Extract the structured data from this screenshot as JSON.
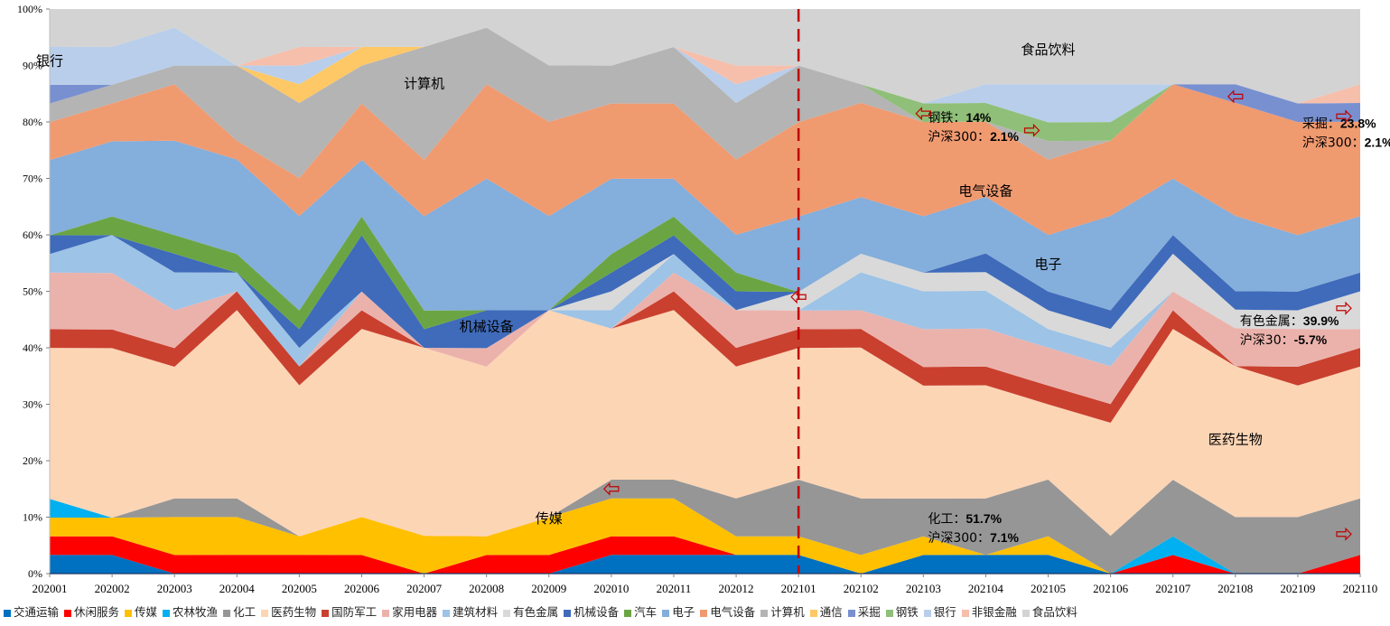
{
  "chart_data": {
    "type": "area",
    "stacked": "percent",
    "title": "",
    "xlabel": "",
    "ylabel": "",
    "ylim": [
      0,
      100
    ],
    "yticks": [
      "0%",
      "10%",
      "20%",
      "30%",
      "40%",
      "50%",
      "60%",
      "70%",
      "80%",
      "90%",
      "100%"
    ],
    "grid": false,
    "legend_position": "bottom",
    "categories": [
      "202001",
      "202002",
      "202003",
      "202004",
      "202005",
      "202006",
      "202007",
      "202008",
      "202009",
      "202010",
      "202011",
      "202012",
      "202101",
      "202102",
      "202103",
      "202104",
      "202105",
      "202106",
      "202107",
      "202108",
      "202109",
      "202110"
    ],
    "series": [
      {
        "name": "交通运输",
        "color": "#0070C0",
        "values": [
          3.3,
          3.3,
          0,
          0,
          0,
          0,
          0,
          0,
          0,
          3.3,
          3.3,
          3.3,
          3.3,
          0,
          3.3,
          3.3,
          3.3,
          0,
          0,
          0,
          0,
          0
        ]
      },
      {
        "name": "休闲服务",
        "color": "#FF0000",
        "values": [
          3.3,
          3.3,
          3.3,
          3.3,
          3.3,
          3.3,
          0,
          3.3,
          3.3,
          3.3,
          3.3,
          0,
          0,
          0,
          0,
          0,
          0,
          0,
          3.3,
          0,
          0,
          3.3
        ]
      },
      {
        "name": "传媒",
        "color": "#FFC000",
        "values": [
          3.3,
          3.3,
          6.7,
          6.7,
          3.3,
          6.7,
          6.7,
          3.3,
          6.7,
          6.7,
          6.7,
          3.3,
          3.3,
          3.3,
          3.3,
          0,
          3.3,
          0,
          0,
          0,
          0,
          0
        ]
      },
      {
        "name": "农林牧渔",
        "color": "#00B0F0",
        "values": [
          3.3,
          0,
          0,
          0,
          0,
          0,
          0,
          0,
          0,
          0,
          0,
          0,
          0,
          0,
          0,
          0,
          0,
          0,
          3.3,
          0,
          0,
          0
        ]
      },
      {
        "name": "化工",
        "color": "#969696",
        "values": [
          0,
          0,
          3.3,
          3.3,
          0,
          0,
          0,
          0,
          0,
          3.3,
          3.3,
          6.7,
          10,
          10,
          6.7,
          10,
          10,
          6.7,
          10,
          10,
          10,
          10
        ]
      },
      {
        "name": "医药生物",
        "color": "#FCD5B5",
        "values": [
          26.7,
          30,
          23.3,
          33.3,
          26.7,
          33.3,
          33.3,
          30,
          36.7,
          26.7,
          30,
          23.3,
          23.3,
          26.7,
          20,
          20,
          13.3,
          20,
          26.7,
          26.7,
          23.3,
          23.3
        ]
      },
      {
        "name": "国防军工",
        "color": "#C9402E",
        "values": [
          3.3,
          3.3,
          3.3,
          3.3,
          3.3,
          3.3,
          0,
          0,
          0,
          0,
          3.3,
          3.3,
          3.3,
          3.3,
          3.3,
          3.3,
          3.3,
          3.3,
          3.3,
          0,
          3.3,
          3.3
        ]
      },
      {
        "name": "家用电器",
        "color": "#EBB2AC",
        "values": [
          10,
          10,
          6.7,
          0,
          0,
          3.3,
          0,
          3.3,
          0,
          0,
          3.3,
          6.7,
          3.3,
          3.3,
          6.7,
          6.7,
          6.7,
          6.7,
          3.3,
          6.7,
          6.7,
          3.3
        ]
      },
      {
        "name": "建筑材料",
        "color": "#9DC3E6",
        "values": [
          3.3,
          6.7,
          6.7,
          3.3,
          3.3,
          0,
          0,
          0,
          0,
          3.3,
          3.3,
          0,
          0,
          6.7,
          6.7,
          6.7,
          3.3,
          3.3,
          0,
          0,
          0,
          0
        ]
      },
      {
        "name": "有色金属",
        "color": "#D9D9D9",
        "values": [
          0,
          0,
          0,
          0,
          0,
          0,
          0,
          0,
          0,
          3.3,
          0,
          0,
          3.3,
          3.3,
          3.3,
          3.3,
          3.3,
          3.3,
          6.7,
          3.3,
          3.3,
          6.7
        ]
      },
      {
        "name": "机械设备",
        "color": "#3F6BBA",
        "values": [
          3.3,
          0,
          3.3,
          0,
          3.3,
          10,
          3.3,
          6.7,
          0,
          3.3,
          3.3,
          3.3,
          0,
          0,
          0,
          3.3,
          3.3,
          3.3,
          3.3,
          3.3,
          3.3,
          3.3
        ]
      },
      {
        "name": "汽车",
        "color": "#6BA543",
        "values": [
          0,
          3.3,
          3.3,
          3.3,
          3.3,
          3.3,
          3.3,
          0,
          0,
          3.3,
          3.3,
          3.3,
          0,
          0,
          0,
          0,
          0,
          0,
          0,
          0,
          0,
          0
        ]
      },
      {
        "name": "电子",
        "color": "#84AEDB",
        "values": [
          13.3,
          13.3,
          16.7,
          16.7,
          16.7,
          10,
          16.7,
          23.3,
          16.7,
          13.3,
          6.7,
          6.7,
          13.3,
          10,
          10,
          10,
          10,
          16.7,
          10,
          13.3,
          10,
          10
        ]
      },
      {
        "name": "电气设备",
        "color": "#F09A70",
        "values": [
          6.7,
          6.7,
          10,
          3.3,
          6.7,
          10,
          10,
          16.7,
          16.7,
          13.3,
          13.3,
          13.3,
          16.7,
          16.7,
          16.7,
          13.3,
          13.3,
          13.3,
          16.7,
          20,
          20,
          16.7
        ]
      },
      {
        "name": "计算机",
        "color": "#B4B4B4",
        "values": [
          3.3,
          3.3,
          3.3,
          13.3,
          13.3,
          6.7,
          20,
          10,
          10,
          6.7,
          10,
          10,
          10,
          3.3,
          0,
          0,
          3.3,
          0,
          0,
          0,
          0,
          0
        ]
      },
      {
        "name": "通信",
        "color": "#FFC866",
        "values": [
          0,
          0,
          0,
          0,
          3.3,
          3.3,
          0,
          0,
          0,
          0,
          0,
          0,
          0,
          0,
          0,
          0,
          0,
          0,
          0,
          0,
          0,
          0
        ]
      },
      {
        "name": "采掘",
        "color": "#7890D0",
        "values": [
          3.3,
          0,
          0,
          0,
          0,
          0,
          0,
          0,
          0,
          0,
          0,
          0,
          0,
          0,
          0,
          0,
          0,
          0,
          0,
          3.3,
          3.3,
          3.3
        ]
      },
      {
        "name": "钢铁",
        "color": "#8FBF78",
        "values": [
          0,
          0,
          0,
          0,
          0,
          0,
          0,
          0,
          0,
          0,
          0,
          0,
          0,
          0,
          3.3,
          3.3,
          3.3,
          3.3,
          0,
          0,
          0,
          0
        ]
      },
      {
        "name": "银行",
        "color": "#B8CEEA",
        "values": [
          6.7,
          6.7,
          6.7,
          0,
          3.3,
          0,
          0,
          0,
          0,
          0,
          0,
          3.3,
          0,
          0,
          0,
          3.3,
          6.7,
          6.7,
          0,
          0,
          0,
          0
        ]
      },
      {
        "name": "非银金融",
        "color": "#F6BFAC",
        "values": [
          0,
          0,
          0,
          0,
          3.3,
          0,
          0,
          0,
          0,
          0,
          0,
          3.3,
          0,
          0,
          0,
          0,
          0,
          0,
          0,
          0,
          0,
          3.3
        ]
      },
      {
        "name": "食品饮料",
        "color": "#D3D3D3",
        "values": [
          6.7,
          6.7,
          3.3,
          10,
          6.7,
          6.7,
          6.7,
          3.3,
          10,
          10,
          6.7,
          10,
          10,
          13.3,
          16.7,
          13.3,
          13.3,
          13.3,
          13.3,
          13.3,
          16.7,
          13.3
        ]
      }
    ],
    "divider": {
      "at_category": "202101",
      "style": "dashed",
      "color": "#C00000"
    },
    "series_labels": [
      {
        "text": "银行",
        "category": "202001",
        "y": 90
      },
      {
        "text": "计算机",
        "category": "202007",
        "y": 86
      },
      {
        "text": "机械设备",
        "category": "202008",
        "y": 43
      },
      {
        "text": "传媒",
        "category": "202009",
        "y": 9
      },
      {
        "text": "食品饮料",
        "category": "202105",
        "y": 92
      },
      {
        "text": "电气设备",
        "category": "202104",
        "y": 67
      },
      {
        "text": "电子",
        "category": "202105",
        "y": 54
      },
      {
        "text": "医药生物",
        "category": "202108",
        "y": 23
      }
    ],
    "annotations": [
      {
        "lines": [
          "钢铁：14%",
          "沪深300：2.1%"
        ],
        "category": "202103",
        "y": 80
      },
      {
        "lines": [
          "采掘：23.8%",
          "沪深300：2.1%"
        ],
        "category": "202109",
        "y": 79
      },
      {
        "lines": [
          "有色金属：39.9%",
          "沪深30：-5.7%"
        ],
        "category": "202108",
        "y": 44
      },
      {
        "lines": [
          "化工：51.7%",
          "沪深300：7.1%"
        ],
        "category": "202103",
        "y": 9
      }
    ],
    "arrows": [
      {
        "direction": "left",
        "category": "202103",
        "y": 81.5
      },
      {
        "direction": "right",
        "category": "202105",
        "y": 78.5
      },
      {
        "direction": "left",
        "category": "202108",
        "y": 84.5
      },
      {
        "direction": "right",
        "category": "202110",
        "y": 81
      },
      {
        "direction": "left",
        "category": "202101",
        "y": 49
      },
      {
        "direction": "right",
        "category": "202110",
        "y": 47
      },
      {
        "direction": "left",
        "category": "202010",
        "y": 15
      },
      {
        "direction": "right",
        "category": "202110",
        "y": 7
      }
    ]
  }
}
